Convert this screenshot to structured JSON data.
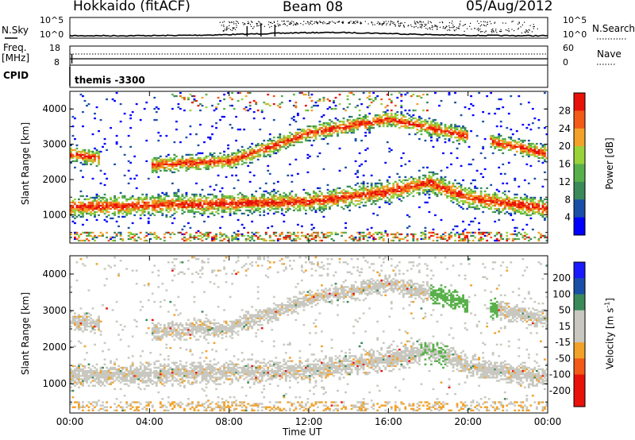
{
  "header": {
    "station": "Hokkaido (fitACF)",
    "beam": "Beam 08",
    "date": "05/Aug/2012"
  },
  "top_panels": {
    "nsky_label": "N.Sky",
    "nsky_ticks": [
      "10^5",
      "10^0"
    ],
    "nsearch_label": "N.Search",
    "freq_label": "Freq.",
    "freq_unit": "[MHz]",
    "freq_ticks": [
      "18",
      "8"
    ],
    "nave_label": "Nave",
    "nave_ticks": [
      "60",
      "0"
    ],
    "cpid_label": "CPID",
    "cpid_value": "themis -3300"
  },
  "colors": {
    "power": [
      "#0000ff",
      "#1a4fa8",
      "#3a8a5a",
      "#58b04a",
      "#9ad23a",
      "#f2a22a",
      "#f25a16",
      "#e8120a"
    ],
    "velocity": [
      "#e8120a",
      "#f25a16",
      "#f2a22a",
      "#c8c8c0",
      "#c8c8c0",
      "#58b04a",
      "#3a8a5a",
      "#1a4fa8",
      "#0000ff"
    ]
  },
  "chart_data": [
    {
      "type": "heatmap",
      "title": "Power",
      "xlabel": "Time UT",
      "ylabel": "Slant Range [km]",
      "x_ticks": [
        "00:00",
        "04:00",
        "08:00",
        "12:00",
        "16:00",
        "20:00",
        "00:00"
      ],
      "x_hours": [
        0,
        4,
        8,
        12,
        16,
        20,
        24
      ],
      "y_ticks": [
        1000,
        2000,
        3000,
        4000
      ],
      "ylim": [
        200,
        4500
      ],
      "colorbar": {
        "label": "Power [dB]",
        "ticks": [
          "4",
          "8",
          "12",
          "16",
          "20",
          "24",
          "28"
        ],
        "range": [
          0,
          32
        ]
      },
      "echo_bands": [
        {
          "name": "lower",
          "x": [
            0,
            4,
            8,
            12,
            16,
            18,
            20,
            24
          ],
          "y": [
            1200,
            1250,
            1300,
            1350,
            1650,
            1900,
            1450,
            1150
          ]
        },
        {
          "name": "upper",
          "x": [
            0,
            4,
            8,
            12,
            16,
            24
          ],
          "y": [
            2700,
            2400,
            2500,
            3300,
            3700,
            2700
          ]
        }
      ]
    },
    {
      "type": "heatmap",
      "title": "Velocity",
      "xlabel": "Time UT",
      "ylabel": "Slant Range [km]",
      "x_ticks": [
        "00:00",
        "04:00",
        "08:00",
        "12:00",
        "16:00",
        "20:00",
        "00:00"
      ],
      "x_hours": [
        0,
        4,
        8,
        12,
        16,
        20,
        24
      ],
      "y_ticks": [
        1000,
        2000,
        3000,
        4000
      ],
      "ylim": [
        200,
        4500
      ],
      "colorbar": {
        "label": "Velocity [m s^-1]",
        "ticks": [
          "200",
          "100",
          "50",
          "15",
          "-15",
          "-50",
          "-100",
          "-200"
        ]
      }
    }
  ]
}
